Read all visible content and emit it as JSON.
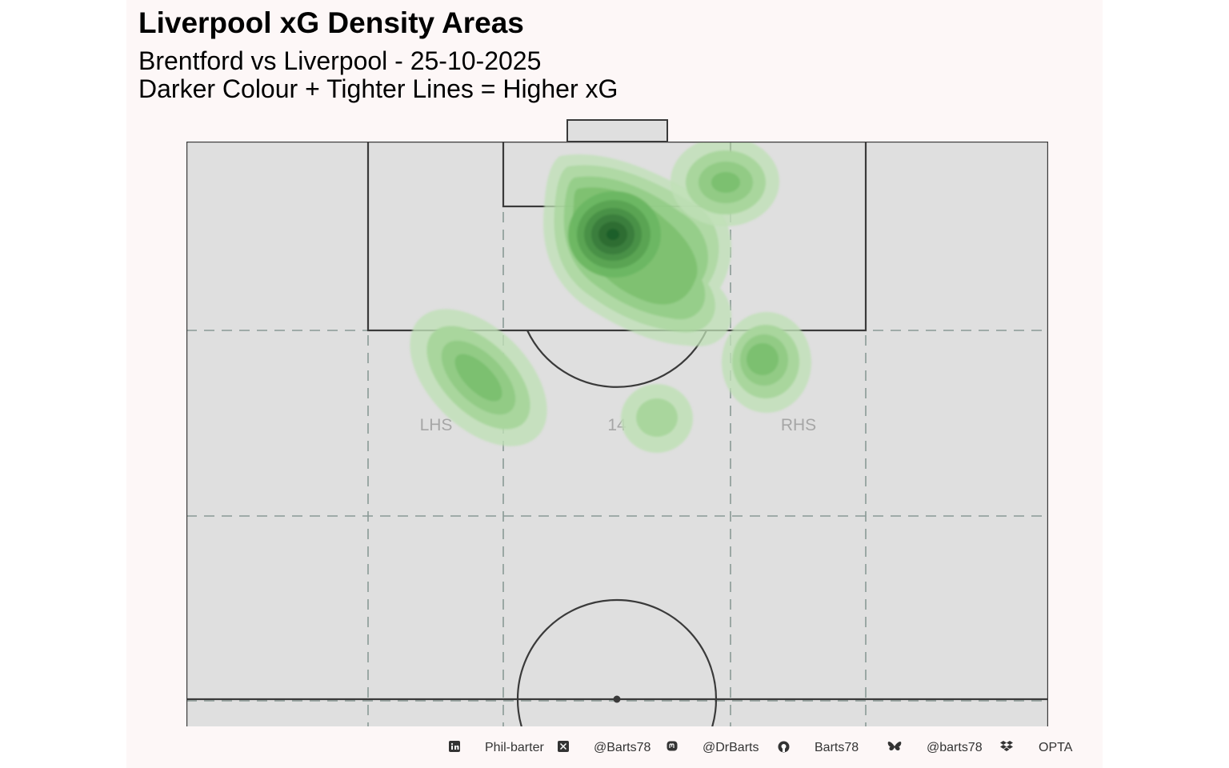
{
  "title": "Liverpool xG Density Areas",
  "subtitle_line1": "Brentford vs Liverpool - 25-10-2025",
  "subtitle_line2": "Darker Colour + Tighter Lines = Higher xG",
  "colors": {
    "panel_background": "#fdf7f7",
    "pitch_fill": "#dfdfdf",
    "pitch_lines": "#3a3a3a",
    "zone_lines": "#8a9a96",
    "density_light": "#bfe0b6",
    "density_dark": "#1f5e2c"
  },
  "zones": {
    "left_label": "LHS",
    "centre_label": "14",
    "right_label": "RHS"
  },
  "chart_data": {
    "type": "heatmap",
    "description_of_encoding": "",
    "hotspots": [
      {
        "x": 90.5,
        "y": 53.1,
        "spread": "tight",
        "intensity": 10
      },
      {
        "x": 84.5,
        "y": 42.0,
        "spread": "wide",
        "intensity": 4
      },
      {
        "x": 97.5,
        "y": 39.2,
        "spread": "medium",
        "intensity": 3
      },
      {
        "x": 81.0,
        "y": 35.5,
        "spread": "medium",
        "intensity": 3
      },
      {
        "x": 77.0,
        "y": 57.5,
        "spread": "elongated",
        "intensity": 3
      },
      {
        "x": 72.0,
        "y": 39.0,
        "spread": "small",
        "intensity": 1
      }
    ]
  },
  "footer": {
    "items": [
      {
        "icon": "linkedin-icon",
        "text": "Phil-barter"
      },
      {
        "icon": "x-twitter-icon",
        "text": "@Barts78"
      },
      {
        "icon": "mastodon-icon",
        "text": "@DrBarts"
      },
      {
        "icon": "github-icon",
        "text": "Barts78"
      },
      {
        "icon": "bluesky-icon",
        "text": "@barts78"
      },
      {
        "icon": "dropbox-icon",
        "text": "OPTA"
      }
    ]
  }
}
